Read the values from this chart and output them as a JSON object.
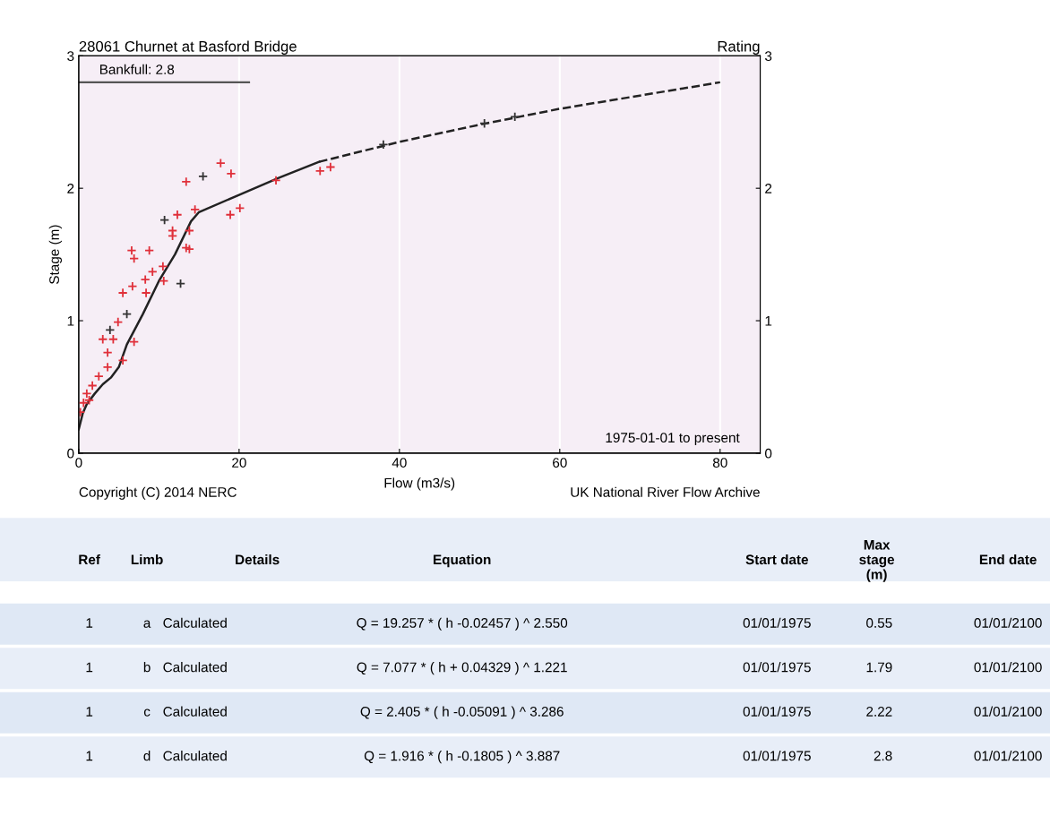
{
  "chart_data": [
    {
      "type": "scatter",
      "title": "28061 Churnet at Basford Bridge",
      "subtitle": "Rating",
      "xlabel": "Flow (m3/s)",
      "ylabel": "Stage (m)",
      "xlim": [
        0,
        85
      ],
      "xticks": [
        0,
        20,
        40,
        60,
        80
      ],
      "ylim": [
        0,
        3
      ],
      "yticks": [
        0,
        1,
        2,
        3
      ],
      "y2lim": [
        0,
        3
      ],
      "y2ticks": [
        0,
        1,
        2,
        3
      ],
      "grid": "x",
      "legend": false,
      "ref_lines": [
        {
          "axis": "y",
          "value": 2.8,
          "label": "Bankfull: 2.8",
          "color": "#555555"
        }
      ],
      "annotations": [
        "1975-01-01 to present",
        "Copyright (C) 2014 NERC",
        "UK National River Flow Archive"
      ],
      "series": [
        {
          "type": "line",
          "color": "#222222",
          "line_style": "solid",
          "marker": "none",
          "x": [
            0,
            0.5,
            1,
            2,
            3,
            4,
            5,
            6,
            8,
            10,
            12,
            14,
            15,
            20,
            25,
            30
          ],
          "values": [
            0.18,
            0.3,
            0.37,
            0.45,
            0.52,
            0.57,
            0.65,
            0.82,
            1.05,
            1.3,
            1.5,
            1.75,
            1.82,
            1.95,
            2.08,
            2.2
          ]
        },
        {
          "type": "line",
          "color": "#222222",
          "line_style": "dashed",
          "marker": "none",
          "x": [
            30,
            40,
            50,
            60,
            70,
            80
          ],
          "values": [
            2.2,
            2.35,
            2.48,
            2.6,
            2.7,
            2.8
          ]
        },
        {
          "type": "scatter",
          "color": "#e0303a",
          "marker": "cross",
          "x": [
            17.7,
            19,
            13.4,
            14.5,
            12.3,
            11.7,
            11.7,
            13.8,
            13.4,
            13.8,
            20.1,
            18.9,
            6.6,
            8.8,
            6.9,
            10.5,
            9.2,
            8.3,
            10.6,
            6.7,
            5.5,
            8.4,
            4.9,
            3.0,
            4.3,
            3.6,
            6.9,
            5.5,
            3.6,
            2.5,
            1.7,
            1.0,
            0.6,
            0.2,
            1.3,
            30.1,
            31.4,
            24.6
          ],
          "values": [
            2.19,
            2.11,
            2.05,
            1.84,
            1.8,
            1.68,
            1.64,
            1.68,
            1.55,
            1.54,
            1.85,
            1.8,
            1.53,
            1.53,
            1.47,
            1.41,
            1.37,
            1.31,
            1.3,
            1.26,
            1.21,
            1.21,
            0.99,
            0.86,
            0.86,
            0.76,
            0.84,
            0.7,
            0.65,
            0.58,
            0.51,
            0.45,
            0.38,
            0.31,
            0.4,
            2.13,
            2.16,
            2.06
          ]
        },
        {
          "type": "scatter",
          "color": "#333333",
          "marker": "cross",
          "x": [
            15.5,
            10.7,
            12.7,
            6.0,
            3.9,
            38,
            50.6,
            54.4
          ],
          "values": [
            2.09,
            1.76,
            1.28,
            1.05,
            0.93,
            2.33,
            2.49,
            2.54
          ]
        }
      ]
    },
    {
      "type": "other",
      "annotations": [
        "Ref",
        "Limb",
        "Details",
        "Equation",
        "Start date",
        "Max\nstage\n(m)",
        "End date",
        "1",
        "a",
        "Calculated",
        "Q = 19.257 * ( h -0.02457 ) ^ 2.550",
        "01/01/1975",
        "0.55",
        "01/01/2100",
        "1",
        "b",
        "Calculated",
        "Q = 7.077 * ( h + 0.04329 ) ^ 1.221",
        "01/01/1975",
        "1.79",
        "01/01/2100",
        "1",
        "c",
        "Calculated",
        "Q = 2.405 * ( h -0.05091 ) ^ 3.286",
        "01/01/1975",
        "2.22",
        "01/01/2100",
        "1",
        "d",
        "Calculated",
        "Q = 1.916 * ( h -0.1805 ) ^ 3.887",
        "01/01/1975",
        "2.8",
        "01/01/2100"
      ]
    }
  ]
}
